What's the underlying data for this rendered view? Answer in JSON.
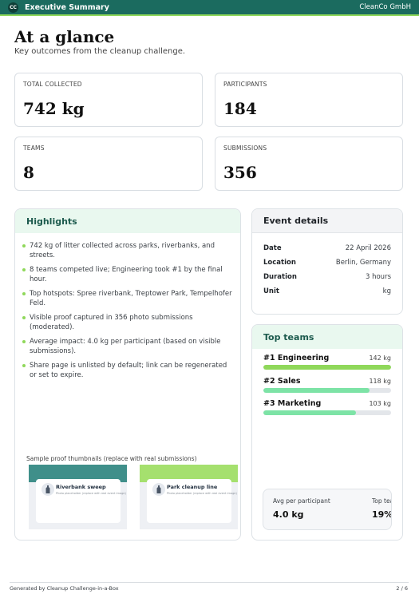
{
  "header": {
    "logo_text": "CC",
    "doc_label": "Executive Summary",
    "company": "CleanCo GmbH"
  },
  "page": {
    "title": "At a glance",
    "subtitle": "Key outcomes from the cleanup challenge."
  },
  "kpis": [
    {
      "label": "TOTAL COLLECTED",
      "value": "742 kg"
    },
    {
      "label": "PARTICIPANTS",
      "value": "184"
    },
    {
      "label": "TEAMS",
      "value": "8"
    },
    {
      "label": "SUBMISSIONS",
      "value": "356"
    }
  ],
  "highlights": {
    "title": "Highlights",
    "items": [
      "742 kg of litter collected across parks, riverbanks, and streets.",
      "8 teams competed live; Engineering took #1 by the final hour.",
      "Top hotspots: Spree riverbank, Treptower Park, Tempelhofer Feld.",
      "Visible proof captured in 356 photo submissions (moderated).",
      "Average impact: 4.0 kg per participant (based on visible submissions).",
      "Share page is unlisted by default; link can be regenerated or set to expire."
    ],
    "thumbs_caption": "Sample proof thumbnails (replace with real submissions)",
    "thumbs": [
      {
        "title": "Riverbank sweep",
        "subtitle": "Photo placeholder (replace with real event image)",
        "band_color": "#3f8f8a"
      },
      {
        "title": "Park cleanup line",
        "subtitle": "Photo placeholder (replace with real event image)",
        "band_color": "#a5e06e"
      }
    ]
  },
  "event_details": {
    "title": "Event details",
    "rows": [
      {
        "key": "Date",
        "value": "22 April 2026"
      },
      {
        "key": "Location",
        "value": "Berlin, Germany"
      },
      {
        "key": "Duration",
        "value": "3 hours"
      },
      {
        "key": "Unit",
        "value": "kg"
      }
    ]
  },
  "top_teams": {
    "title": "Top teams",
    "teams": [
      {
        "name": "#1 Engineering",
        "kg": "142 kg",
        "fill": 1.0,
        "color": "#8fd85a"
      },
      {
        "name": "#2 Sales",
        "kg": "118 kg",
        "fill": 0.83,
        "color": "#7de3a6"
      },
      {
        "name": "#3 Marketing",
        "kg": "103 kg",
        "fill": 0.725,
        "color": "#7de3a6"
      }
    ],
    "stats": [
      {
        "label": "Avg per participant",
        "value": "4.0 kg"
      },
      {
        "label": "Top team share",
        "value": "19%"
      }
    ]
  },
  "footer": {
    "left": "Generated by Cleanup Challenge-in-a-Box",
    "right": "2 / 6"
  }
}
